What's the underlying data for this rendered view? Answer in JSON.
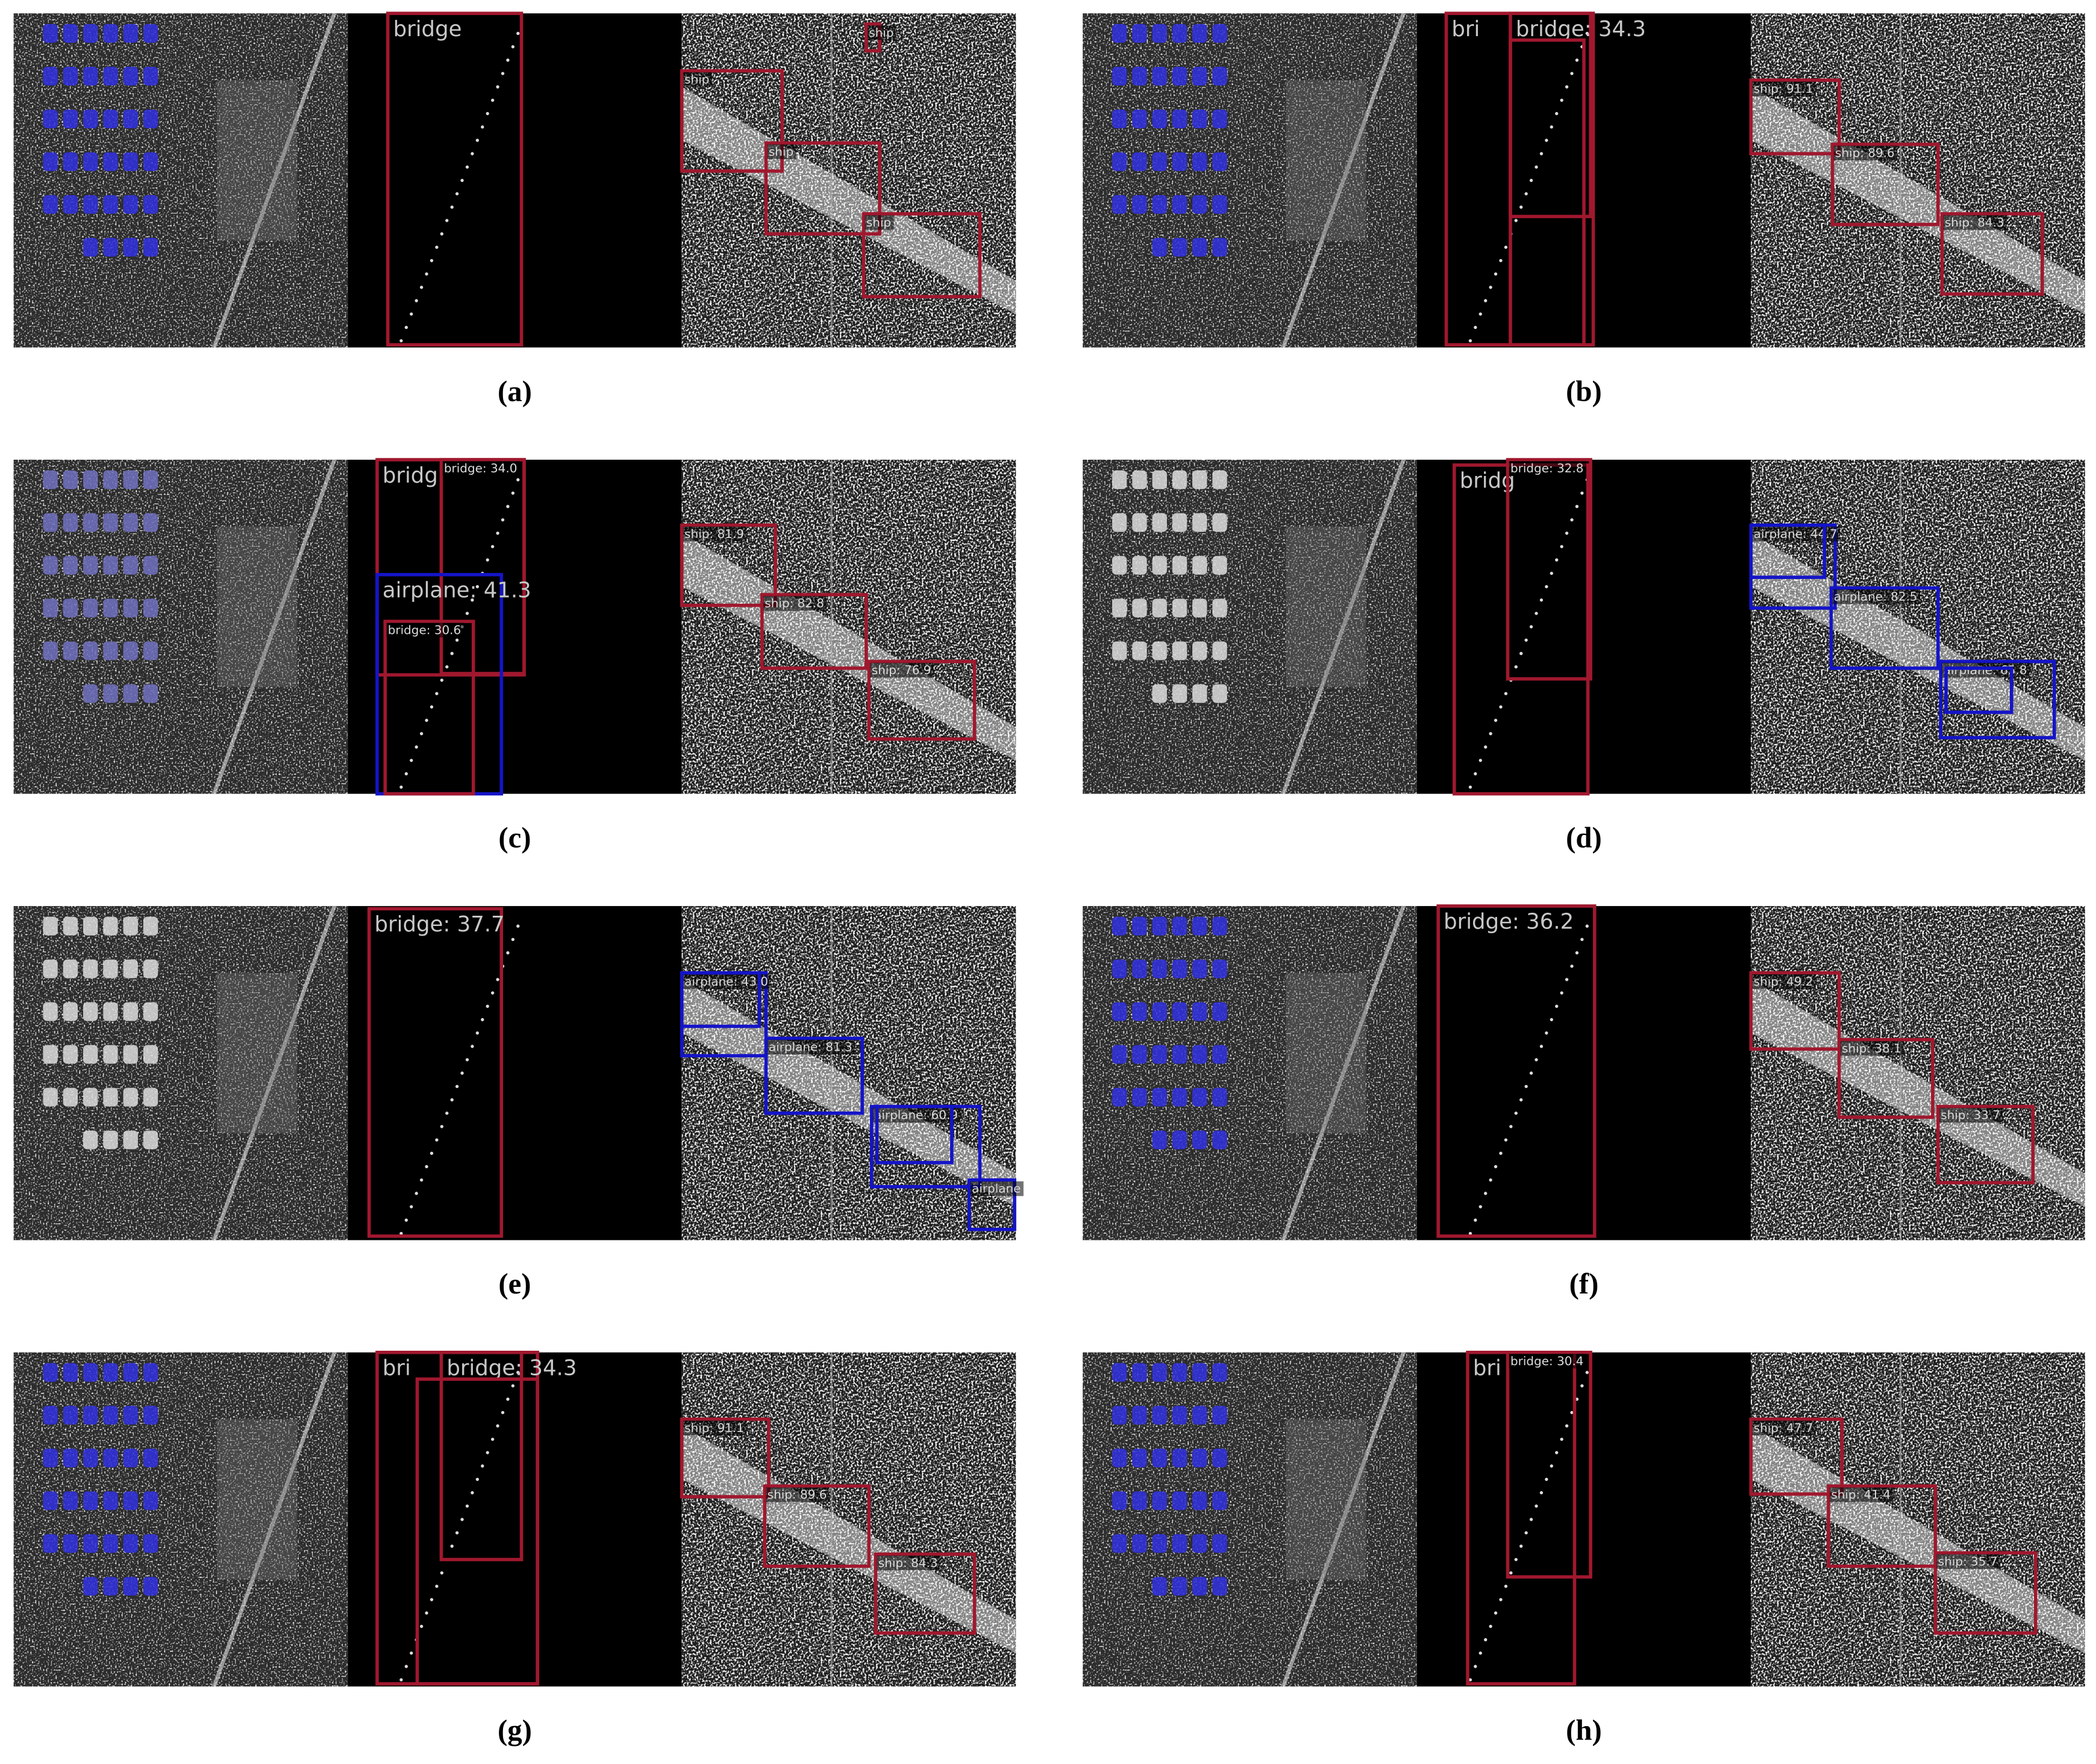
{
  "panels": [
    {
      "caption": "(a)",
      "labels": [
        "bridge",
        "ship",
        "ship",
        "ship",
        "ship"
      ]
    },
    {
      "caption": "(b)",
      "labels": [
        "bri",
        "bridge: 34.3",
        "ship: 91.1",
        "ship: 89.6",
        "ship: 84.3"
      ]
    },
    {
      "caption": "(c)",
      "labels": [
        "bridg",
        "bridge: 34.0",
        "airplane: 41.3",
        "bridge: 30.6",
        "ship: 81.9",
        "ship: 82.8",
        "ship: 76.9"
      ]
    },
    {
      "caption": "(d)",
      "labels": [
        "bridg",
        "bridge: 32.8",
        "airplane: 44.7",
        "airplane: 82.5",
        "airplane: 65.8"
      ]
    },
    {
      "caption": "(e)",
      "labels": [
        "bridge: 37.7",
        "airplane: 43.0",
        "airplane: 81.3",
        "airplane: 60.9",
        "airplane"
      ]
    },
    {
      "caption": "(f)",
      "labels": [
        "bridge: 36.2",
        "ship: 49.2",
        "ship: 38.1",
        "ship: 33.7"
      ]
    },
    {
      "caption": "(g)",
      "labels": [
        "bri",
        "bridge: 34.3",
        "ship: 91.1",
        "ship: 89.6",
        "ship: 84.3"
      ]
    },
    {
      "caption": "(h)",
      "labels": [
        "bri",
        "bridge: 30.4",
        "ship: 47.7",
        "ship: 41.4",
        "ship: 35.7"
      ]
    }
  ]
}
